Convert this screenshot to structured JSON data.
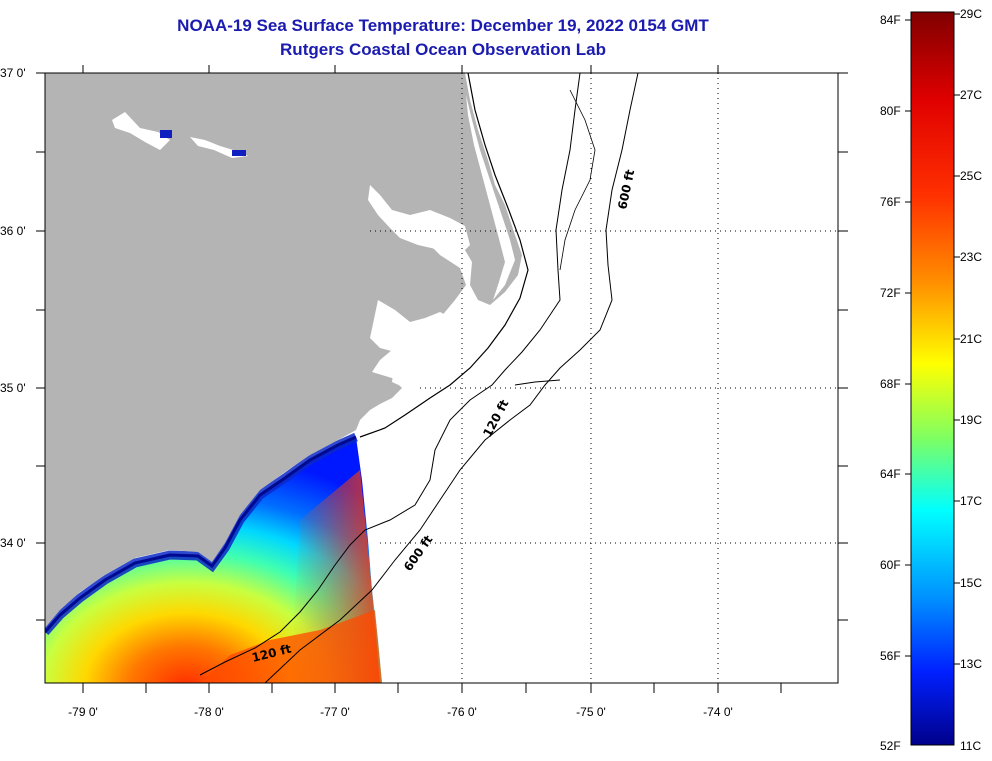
{
  "title": {
    "line1": "NOAA-19 Sea Surface Temperature:  December 19, 2022 0154 GMT",
    "line2": "Rutgers Coastal Ocean Observation Lab"
  },
  "map": {
    "lat_labels": [
      "37 0'",
      "36 0'",
      "35 0'",
      "34 0'"
    ],
    "lon_labels": [
      "-79 0'",
      "-78 0'",
      "-77 0'",
      "-76 0'",
      "-75 0'",
      "-74 0'"
    ],
    "contours": [
      {
        "label": "600 ft"
      },
      {
        "label": "120 ft"
      },
      {
        "label": "600 ft"
      },
      {
        "label": "120 ft"
      }
    ],
    "colors": {
      "land": "#b4b4b4",
      "ocean_no_data": "#ffffff",
      "contour": "#000000"
    }
  },
  "colorbar": {
    "fahrenheit_labels": [
      "84F",
      "80F",
      "76F",
      "72F",
      "68F",
      "64F",
      "60F",
      "56F",
      "52F"
    ],
    "celsius_labels": [
      "29C",
      "27C",
      "25C",
      "23C",
      "21C",
      "19C",
      "17C",
      "15C",
      "13C",
      "11C"
    ],
    "scale": [
      "#00008f",
      "#0000ff",
      "#0080ff",
      "#00ffff",
      "#80ff80",
      "#ffff00",
      "#ff8000",
      "#ff0000",
      "#800000"
    ]
  }
}
